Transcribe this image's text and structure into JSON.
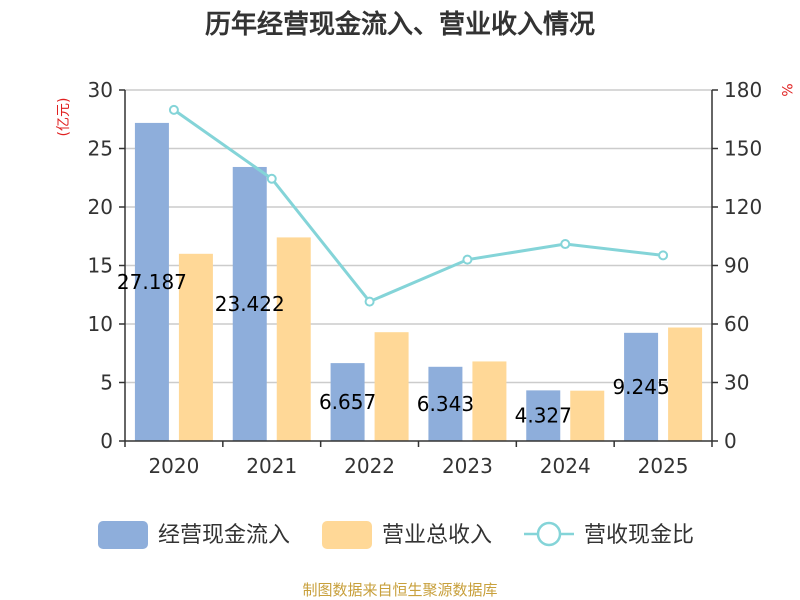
{
  "chart_data": {
    "type": "bar",
    "title": "历年经营现金流入、营业收入情况",
    "categories": [
      "2020",
      "2021",
      "2022",
      "2023",
      "2024",
      "2025"
    ],
    "series": [
      {
        "name": "经营现金流入",
        "type": "bar",
        "axis": "left",
        "color": "#8eaedb",
        "values": [
          27.187,
          23.422,
          6.657,
          6.343,
          4.327,
          9.245
        ],
        "labels": [
          "27.187",
          "23.422",
          "6.657",
          "6.343",
          "4.327",
          "9.245"
        ]
      },
      {
        "name": "营业总收入",
        "type": "bar",
        "axis": "left",
        "color": "#ffd897",
        "values": [
          16.0,
          17.4,
          9.3,
          6.8,
          4.3,
          9.7
        ]
      },
      {
        "name": "营收现金比",
        "type": "line",
        "axis": "right",
        "color": "#84d4d8",
        "values": [
          169.8,
          134.5,
          71.5,
          93.0,
          101.0,
          95.2
        ]
      }
    ],
    "y_left": {
      "unit": "(亿元)",
      "ylim": [
        0,
        30
      ],
      "ticks": [
        0,
        5,
        10,
        15,
        20,
        25,
        30
      ]
    },
    "y_right": {
      "unit": "%",
      "ylim": [
        0,
        180
      ],
      "ticks": [
        0,
        30,
        60,
        90,
        120,
        150,
        180
      ]
    },
    "grid": true,
    "legend": "bottom"
  },
  "source": "制图数据来自恒生聚源数据库"
}
